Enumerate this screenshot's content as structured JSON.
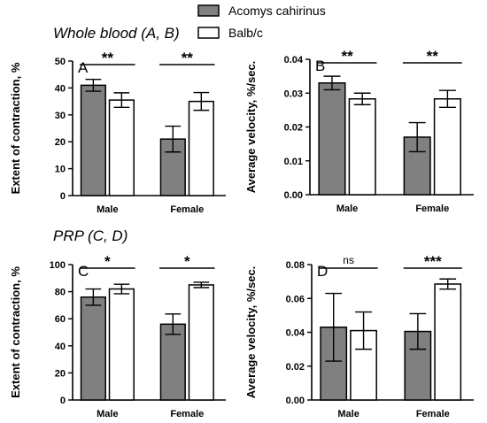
{
  "legend": {
    "items": [
      {
        "label": "Acomys cahirinus",
        "color": "#808080"
      },
      {
        "label": "Balb/c",
        "color": "#ffffff"
      }
    ]
  },
  "section_titles": {
    "top": "Whole blood (A, B)",
    "bottom": "PRP (C, D)"
  },
  "chart_data": [
    {
      "panel_label": "A",
      "type": "bar",
      "ylabel": "Extent of contraction, %",
      "categories": [
        "Male",
        "Female"
      ],
      "ylim": [
        0,
        50
      ],
      "yticks": [
        "0",
        "10",
        "20",
        "30",
        "40",
        "50"
      ],
      "series": [
        {
          "name": "Acomys cahirinus",
          "values": [
            41,
            21
          ],
          "errors": [
            2.2,
            4.8
          ]
        },
        {
          "name": "Balb/c",
          "values": [
            35.5,
            35
          ],
          "errors": [
            2.7,
            3.3
          ]
        }
      ],
      "significance": [
        "**",
        "**"
      ]
    },
    {
      "panel_label": "B",
      "type": "bar",
      "ylabel": "Average velocity, %/sec.",
      "categories": [
        "Male",
        "Female"
      ],
      "ylim": [
        0,
        0.04
      ],
      "yticks": [
        "0.00",
        "0.01",
        "0.02",
        "0.03",
        "0.04"
      ],
      "series": [
        {
          "name": "Acomys cahirinus",
          "values": [
            0.033,
            0.017
          ],
          "errors": [
            0.002,
            0.0043
          ]
        },
        {
          "name": "Balb/c",
          "values": [
            0.0283,
            0.0283
          ],
          "errors": [
            0.0017,
            0.0025
          ]
        }
      ],
      "significance": [
        "**",
        "**"
      ]
    },
    {
      "panel_label": "C",
      "type": "bar",
      "ylabel": "Extent of contraction, %",
      "categories": [
        "Male",
        "Female"
      ],
      "ylim": [
        0,
        100
      ],
      "yticks": [
        "0",
        "20",
        "40",
        "60",
        "80",
        "100"
      ],
      "series": [
        {
          "name": "Acomys cahirinus",
          "values": [
            76,
            56
          ],
          "errors": [
            6,
            7.5
          ]
        },
        {
          "name": "Balb/c",
          "values": [
            82,
            85
          ],
          "errors": [
            3.5,
            2
          ]
        }
      ],
      "significance": [
        "*",
        "*"
      ]
    },
    {
      "panel_label": "D",
      "type": "bar",
      "ylabel": "Average velocity, %/sec.",
      "categories": [
        "Male",
        "Female"
      ],
      "ylim": [
        0,
        0.08
      ],
      "yticks": [
        "0.00",
        "0.02",
        "0.04",
        "0.06",
        "0.08"
      ],
      "series": [
        {
          "name": "Acomys cahirinus",
          "values": [
            0.043,
            0.0405
          ],
          "errors": [
            0.02,
            0.0105
          ]
        },
        {
          "name": "Balb/c",
          "values": [
            0.041,
            0.0685
          ],
          "errors": [
            0.011,
            0.003
          ]
        }
      ],
      "significance": [
        "ns",
        "***"
      ]
    }
  ]
}
